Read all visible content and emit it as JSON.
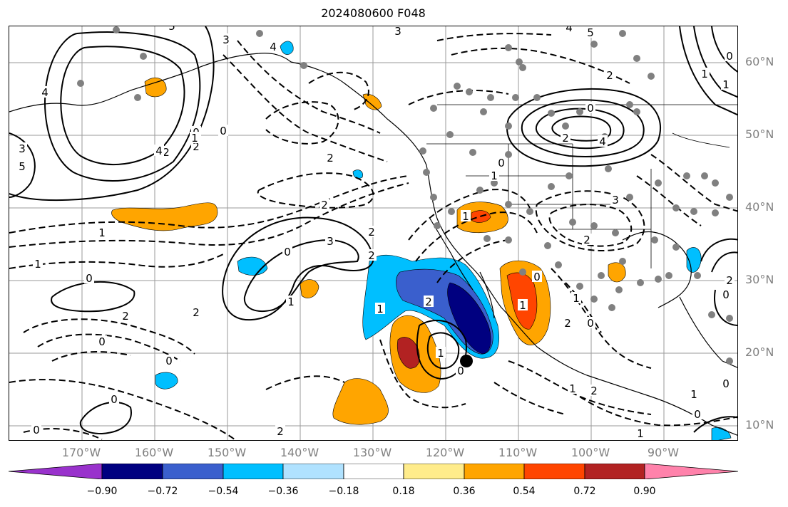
{
  "title": "2024080600 F048",
  "lat_labels": [
    "60°N",
    "50°N",
    "40°N",
    "30°N",
    "20°N",
    "10°N"
  ],
  "lon_labels": [
    "170°W",
    "160°W",
    "150°W",
    "140°W",
    "130°W",
    "120°W",
    "110°W",
    "100°W",
    "90°W"
  ],
  "colorbar": {
    "colors": [
      "#9932cc",
      "#000080",
      "#3a5fcd",
      "#00bfff",
      "#b0e2ff",
      "#ffffff",
      "#ffec8b",
      "#ffa500",
      "#ff4500",
      "#b22222",
      "#ff82ab"
    ],
    "ticks": [
      "−0.90",
      "−0.72",
      "−0.54",
      "−0.36",
      "−0.18",
      "0.18",
      "0.36",
      "0.54",
      "0.72",
      "0.90"
    ]
  },
  "contour_labels": [
    "4",
    "5",
    "4",
    "3",
    "2",
    "0",
    "2",
    "3",
    "4",
    "5",
    "2",
    "0",
    "2",
    "4",
    "3",
    "5",
    "4",
    "2",
    "1",
    "2",
    "3",
    "0",
    "0",
    "1",
    "2",
    "0",
    "0",
    "2",
    "1",
    "2",
    "2",
    "1",
    "0",
    "1",
    "2",
    "2",
    "2",
    "1",
    "0",
    "1",
    "0",
    "0",
    "2",
    "1",
    "0",
    "1",
    "2",
    "3",
    "1",
    "0",
    "0",
    "1",
    "2",
    "1",
    "0",
    "0",
    "1",
    "1",
    "0",
    "0",
    "2",
    "1"
  ],
  "marker_color": "#000000"
}
